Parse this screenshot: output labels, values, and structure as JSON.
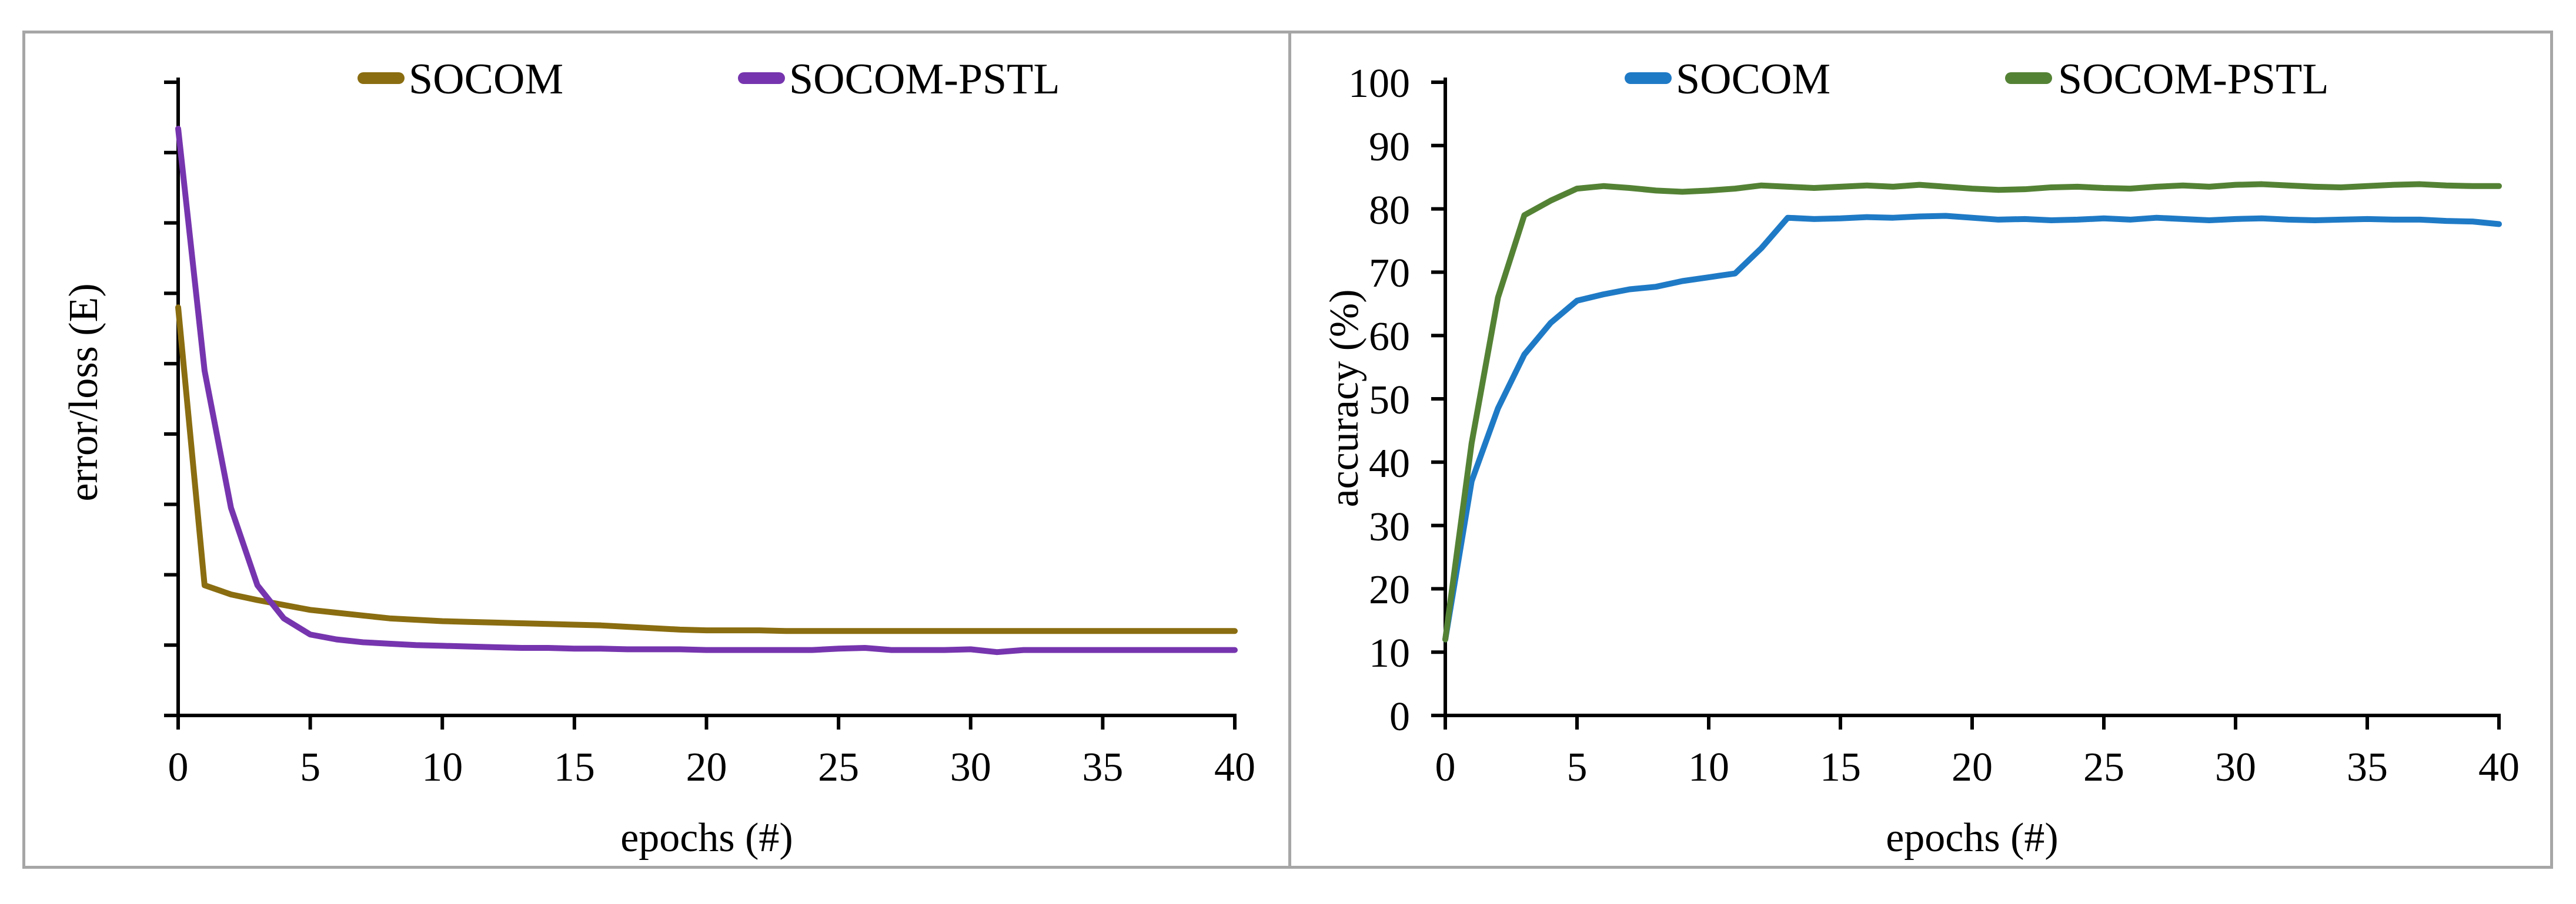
{
  "figure": {
    "background": "#ffffff",
    "border_color": "#a6a6a6",
    "axis_color": "#000000"
  },
  "chart_data": [
    {
      "type": "line",
      "panel": "left",
      "title": "",
      "xlabel": "epochs (#)",
      "ylabel": "error/loss (E)",
      "xlim": [
        0,
        40
      ],
      "ylim": [
        0,
        9
      ],
      "x_ticks": [
        0,
        5,
        10,
        15,
        20,
        25,
        30,
        35,
        40
      ],
      "y_ticks": [
        0,
        1,
        2,
        3,
        4,
        5,
        6,
        7,
        8,
        9
      ],
      "y_tick_labels_shown": false,
      "x_tick_labels_shown": true,
      "grid": false,
      "legend_position": "top",
      "x": [
        0,
        1,
        2,
        3,
        4,
        5,
        6,
        7,
        8,
        9,
        10,
        11,
        12,
        13,
        14,
        15,
        16,
        17,
        18,
        19,
        20,
        21,
        22,
        23,
        24,
        25,
        26,
        27,
        28,
        29,
        30,
        31,
        32,
        33,
        34,
        35,
        36,
        37,
        38,
        39,
        40
      ],
      "series": [
        {
          "name": "SOCOM",
          "color": "#8a6d10",
          "values": [
            5.8,
            1.85,
            1.72,
            1.64,
            1.57,
            1.5,
            1.46,
            1.42,
            1.38,
            1.36,
            1.34,
            1.33,
            1.32,
            1.31,
            1.3,
            1.29,
            1.28,
            1.26,
            1.24,
            1.22,
            1.21,
            1.21,
            1.21,
            1.2,
            1.2,
            1.2,
            1.2,
            1.2,
            1.2,
            1.2,
            1.2,
            1.2,
            1.2,
            1.2,
            1.2,
            1.2,
            1.2,
            1.2,
            1.2,
            1.2,
            1.2
          ]
        },
        {
          "name": "SOCOM-PSTL",
          "color": "#7635ae",
          "values": [
            8.34,
            4.9,
            2.95,
            1.85,
            1.38,
            1.15,
            1.08,
            1.04,
            1.02,
            1.0,
            0.99,
            0.98,
            0.97,
            0.96,
            0.96,
            0.95,
            0.95,
            0.94,
            0.94,
            0.94,
            0.93,
            0.93,
            0.93,
            0.93,
            0.93,
            0.95,
            0.96,
            0.93,
            0.93,
            0.93,
            0.94,
            0.9,
            0.93,
            0.93,
            0.93,
            0.93,
            0.93,
            0.93,
            0.93,
            0.93,
            0.93
          ]
        }
      ]
    },
    {
      "type": "line",
      "panel": "right",
      "title": "",
      "xlabel": "epochs (#)",
      "ylabel": "accuracy (%)",
      "xlim": [
        0,
        40
      ],
      "ylim": [
        0,
        100
      ],
      "x_ticks": [
        0,
        5,
        10,
        15,
        20,
        25,
        30,
        35,
        40
      ],
      "y_ticks": [
        0,
        10,
        20,
        30,
        40,
        50,
        60,
        70,
        80,
        90,
        100
      ],
      "y_tick_labels_shown": true,
      "x_tick_labels_shown": true,
      "grid": false,
      "legend_position": "top",
      "x": [
        0,
        1,
        2,
        3,
        4,
        5,
        6,
        7,
        8,
        9,
        10,
        11,
        12,
        13,
        14,
        15,
        16,
        17,
        18,
        19,
        20,
        21,
        22,
        23,
        24,
        25,
        26,
        27,
        28,
        29,
        30,
        31,
        32,
        33,
        34,
        35,
        36,
        37,
        38,
        39,
        40
      ],
      "series": [
        {
          "name": "SOCOM",
          "color": "#1f7ac6",
          "values": [
            12,
            37,
            48.5,
            57,
            62,
            65.5,
            66.5,
            67.3,
            67.7,
            68.6,
            69.2,
            69.8,
            73.8,
            78.6,
            78.4,
            78.5,
            78.7,
            78.6,
            78.8,
            78.9,
            78.6,
            78.3,
            78.4,
            78.2,
            78.3,
            78.5,
            78.3,
            78.6,
            78.4,
            78.2,
            78.4,
            78.5,
            78.3,
            78.2,
            78.3,
            78.4,
            78.3,
            78.3,
            78.1,
            78.0,
            77.6
          ]
        },
        {
          "name": "SOCOM-PSTL",
          "color": "#548235",
          "values": [
            12,
            43,
            66,
            79,
            81.3,
            83.2,
            83.6,
            83.3,
            82.9,
            82.7,
            82.9,
            83.2,
            83.7,
            83.5,
            83.3,
            83.5,
            83.7,
            83.5,
            83.8,
            83.5,
            83.2,
            83.0,
            83.1,
            83.4,
            83.5,
            83.3,
            83.2,
            83.5,
            83.7,
            83.5,
            83.8,
            83.9,
            83.7,
            83.5,
            83.4,
            83.6,
            83.8,
            83.9,
            83.7,
            83.6,
            83.6
          ]
        }
      ]
    }
  ]
}
